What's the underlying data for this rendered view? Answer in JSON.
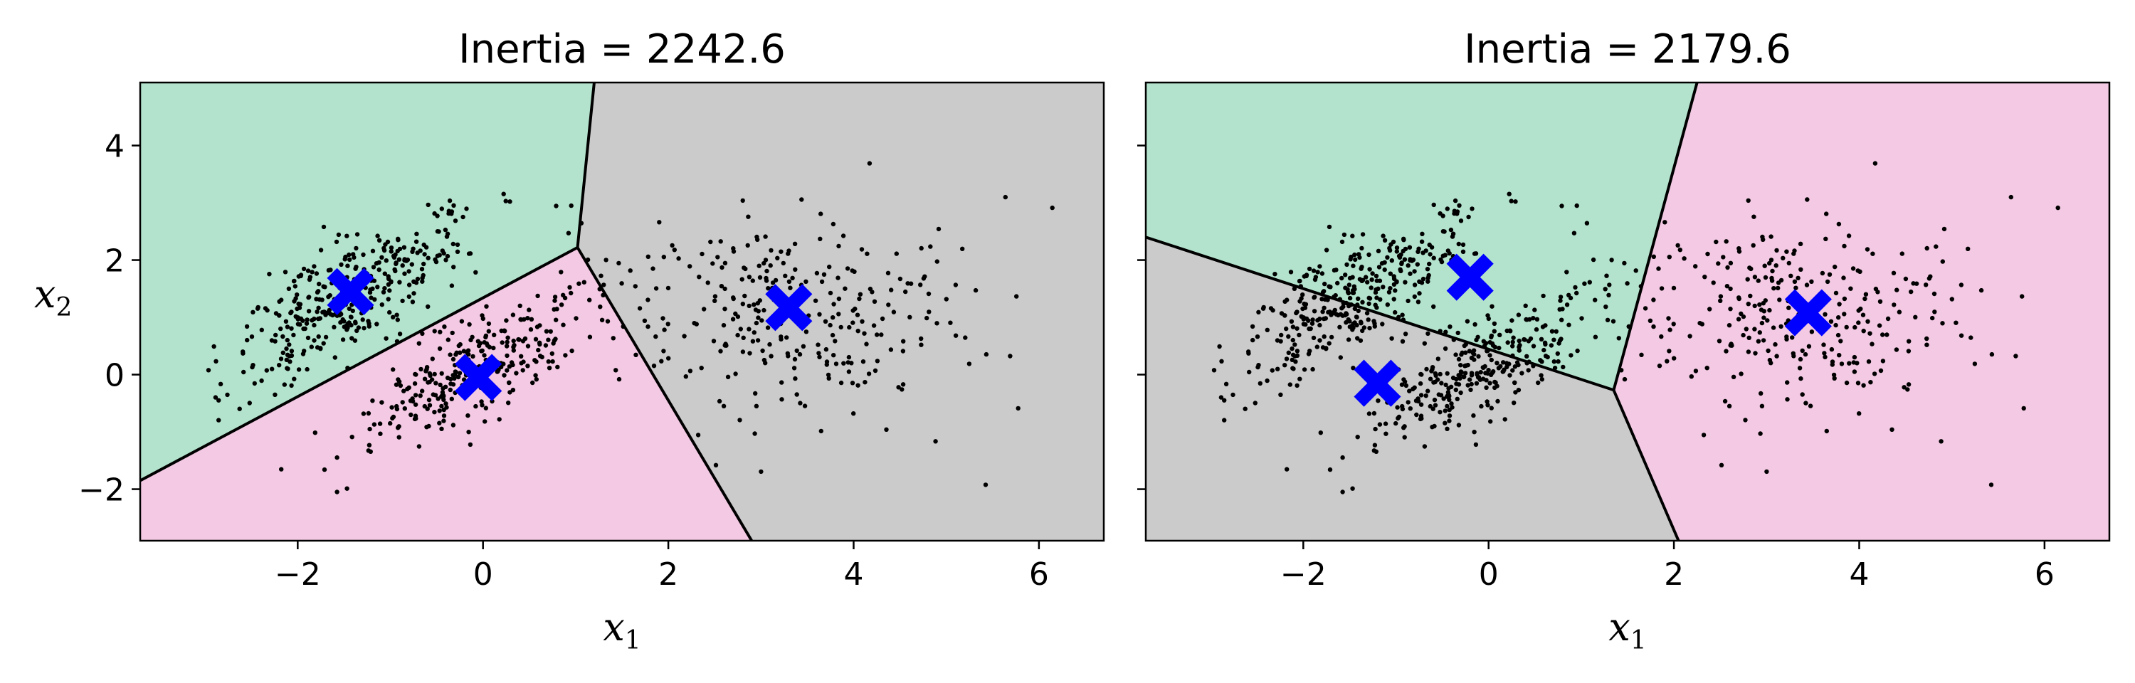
{
  "chart_data": [
    {
      "type": "scatter",
      "title": "Inertia = 2242.6",
      "xlabel": "x",
      "xlabel_sub": "1",
      "ylabel": "x",
      "ylabel_sub": "2",
      "xlim": [
        -3.7,
        6.7
      ],
      "ylim": [
        -2.9,
        5.1
      ],
      "xticks": [
        -2,
        0,
        2,
        4,
        6
      ],
      "yticks": [
        -2,
        0,
        2,
        4
      ],
      "regions": [
        {
          "name": "green",
          "color": "#b3e3cd",
          "polygon": [
            [
              -3.7,
              -1.85
            ],
            [
              1.02,
              2.22
            ],
            [
              1.2,
              5.1
            ],
            [
              -3.7,
              5.1
            ]
          ]
        },
        {
          "name": "pink",
          "color": "#f3c9e3",
          "polygon": [
            [
              -3.7,
              -1.85
            ],
            [
              1.02,
              2.22
            ],
            [
              2.9,
              -2.9
            ],
            [
              -3.7,
              -2.9
            ]
          ]
        },
        {
          "name": "gray",
          "color": "#cbcbcb",
          "polygon": [
            [
              1.02,
              2.22
            ],
            [
              1.2,
              5.1
            ],
            [
              6.7,
              5.1
            ],
            [
              6.7,
              -2.9
            ],
            [
              2.9,
              -2.9
            ]
          ]
        }
      ],
      "boundaries": [
        [
          [
            -3.7,
            -1.85
          ],
          [
            1.02,
            2.22
          ]
        ],
        [
          [
            1.02,
            2.22
          ],
          [
            1.2,
            5.1
          ]
        ],
        [
          [
            1.02,
            2.22
          ],
          [
            2.9,
            -2.9
          ]
        ]
      ],
      "centroids": [
        [
          -1.43,
          1.45
        ],
        [
          -0.05,
          -0.05
        ],
        [
          3.3,
          1.17
        ]
      ],
      "blobs": [
        {
          "center": [
            -1.5,
            1.3
          ],
          "n": 360,
          "sx": 0.95,
          "sy": 0.95,
          "rot": 0.85,
          "sxy": 0.35
        },
        {
          "center": [
            -0.1,
            0.05
          ],
          "n": 300,
          "sx": 0.85,
          "sy": 0.95,
          "rot": 0.9,
          "sxy": 0.35
        },
        {
          "center": [
            3.3,
            1.1
          ],
          "n": 300,
          "sx": 1.05,
          "sy": 1.0,
          "rot": 0.0,
          "sxy": 1.0
        }
      ]
    },
    {
      "type": "scatter",
      "title": "Inertia = 2179.6",
      "xlabel": "x",
      "xlabel_sub": "1",
      "ylabel": "",
      "ylabel_sub": "",
      "xlim": [
        -3.7,
        6.7
      ],
      "ylim": [
        -2.9,
        5.1
      ],
      "xticks": [
        -2,
        0,
        2,
        4,
        6
      ],
      "yticks": [
        -2,
        0,
        2,
        4
      ],
      "regions": [
        {
          "name": "green",
          "color": "#b3e3cd",
          "polygon": [
            [
              -3.7,
              2.4
            ],
            [
              1.35,
              -0.27
            ],
            [
              2.25,
              5.1
            ],
            [
              -3.7,
              5.1
            ]
          ]
        },
        {
          "name": "gray",
          "color": "#cbcbcb",
          "polygon": [
            [
              -3.7,
              2.4
            ],
            [
              1.35,
              -0.27
            ],
            [
              2.05,
              -2.9
            ],
            [
              -3.7,
              -2.9
            ]
          ]
        },
        {
          "name": "pink",
          "color": "#f3c9e3",
          "polygon": [
            [
              1.35,
              -0.27
            ],
            [
              2.25,
              5.1
            ],
            [
              6.7,
              5.1
            ],
            [
              6.7,
              -2.9
            ],
            [
              2.05,
              -2.9
            ]
          ]
        }
      ],
      "boundaries": [
        [
          [
            -3.7,
            2.4
          ],
          [
            1.35,
            -0.27
          ]
        ],
        [
          [
            1.35,
            -0.27
          ],
          [
            2.25,
            5.1
          ]
        ],
        [
          [
            1.35,
            -0.27
          ],
          [
            2.05,
            -2.9
          ]
        ]
      ],
      "centroids": [
        [
          -0.2,
          1.7
        ],
        [
          -1.2,
          -0.15
        ],
        [
          3.45,
          1.08
        ]
      ],
      "blobs": [
        {
          "center": [
            -1.5,
            1.3
          ],
          "n": 360,
          "sx": 0.95,
          "sy": 0.95,
          "rot": 0.85,
          "sxy": 0.35
        },
        {
          "center": [
            -0.1,
            0.05
          ],
          "n": 300,
          "sx": 0.85,
          "sy": 0.95,
          "rot": 0.9,
          "sxy": 0.35
        },
        {
          "center": [
            3.3,
            1.1
          ],
          "n": 300,
          "sx": 1.05,
          "sy": 1.0,
          "rot": 0.0,
          "sxy": 1.0
        }
      ]
    }
  ],
  "colors": {
    "centroid": "#0000ff",
    "points": "#000000",
    "boundary": "#000000"
  }
}
